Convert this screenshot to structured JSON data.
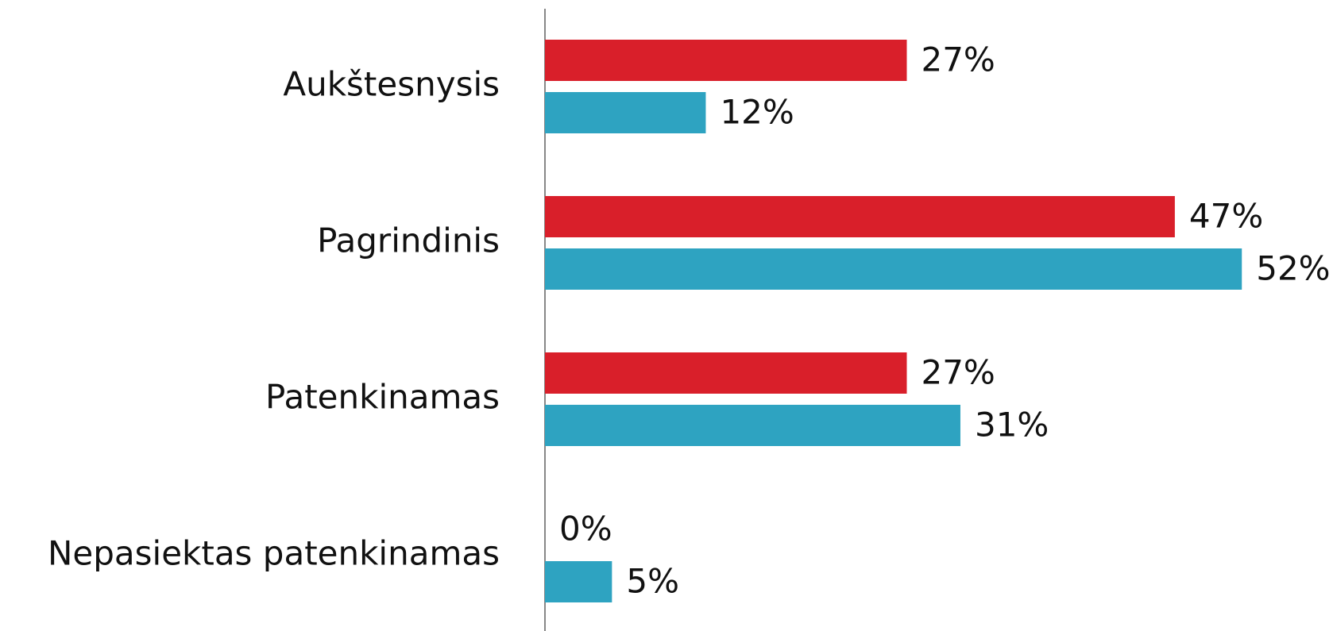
{
  "chart_data": {
    "type": "bar",
    "orientation": "horizontal",
    "categories": [
      "Aukštesnysis",
      "Pagrindinis",
      "Patenkinamas",
      "Nepasiektas patenkinamas"
    ],
    "series": [
      {
        "color": "#d91f2a",
        "values": [
          27,
          47,
          27,
          0
        ],
        "value_labels": [
          "27%",
          "47%",
          "27%",
          "0%"
        ]
      },
      {
        "color": "#2ea3c1",
        "values": [
          12,
          52,
          31,
          5
        ],
        "value_labels": [
          "12%",
          "52%",
          "31%",
          "5%"
        ]
      }
    ]
  }
}
